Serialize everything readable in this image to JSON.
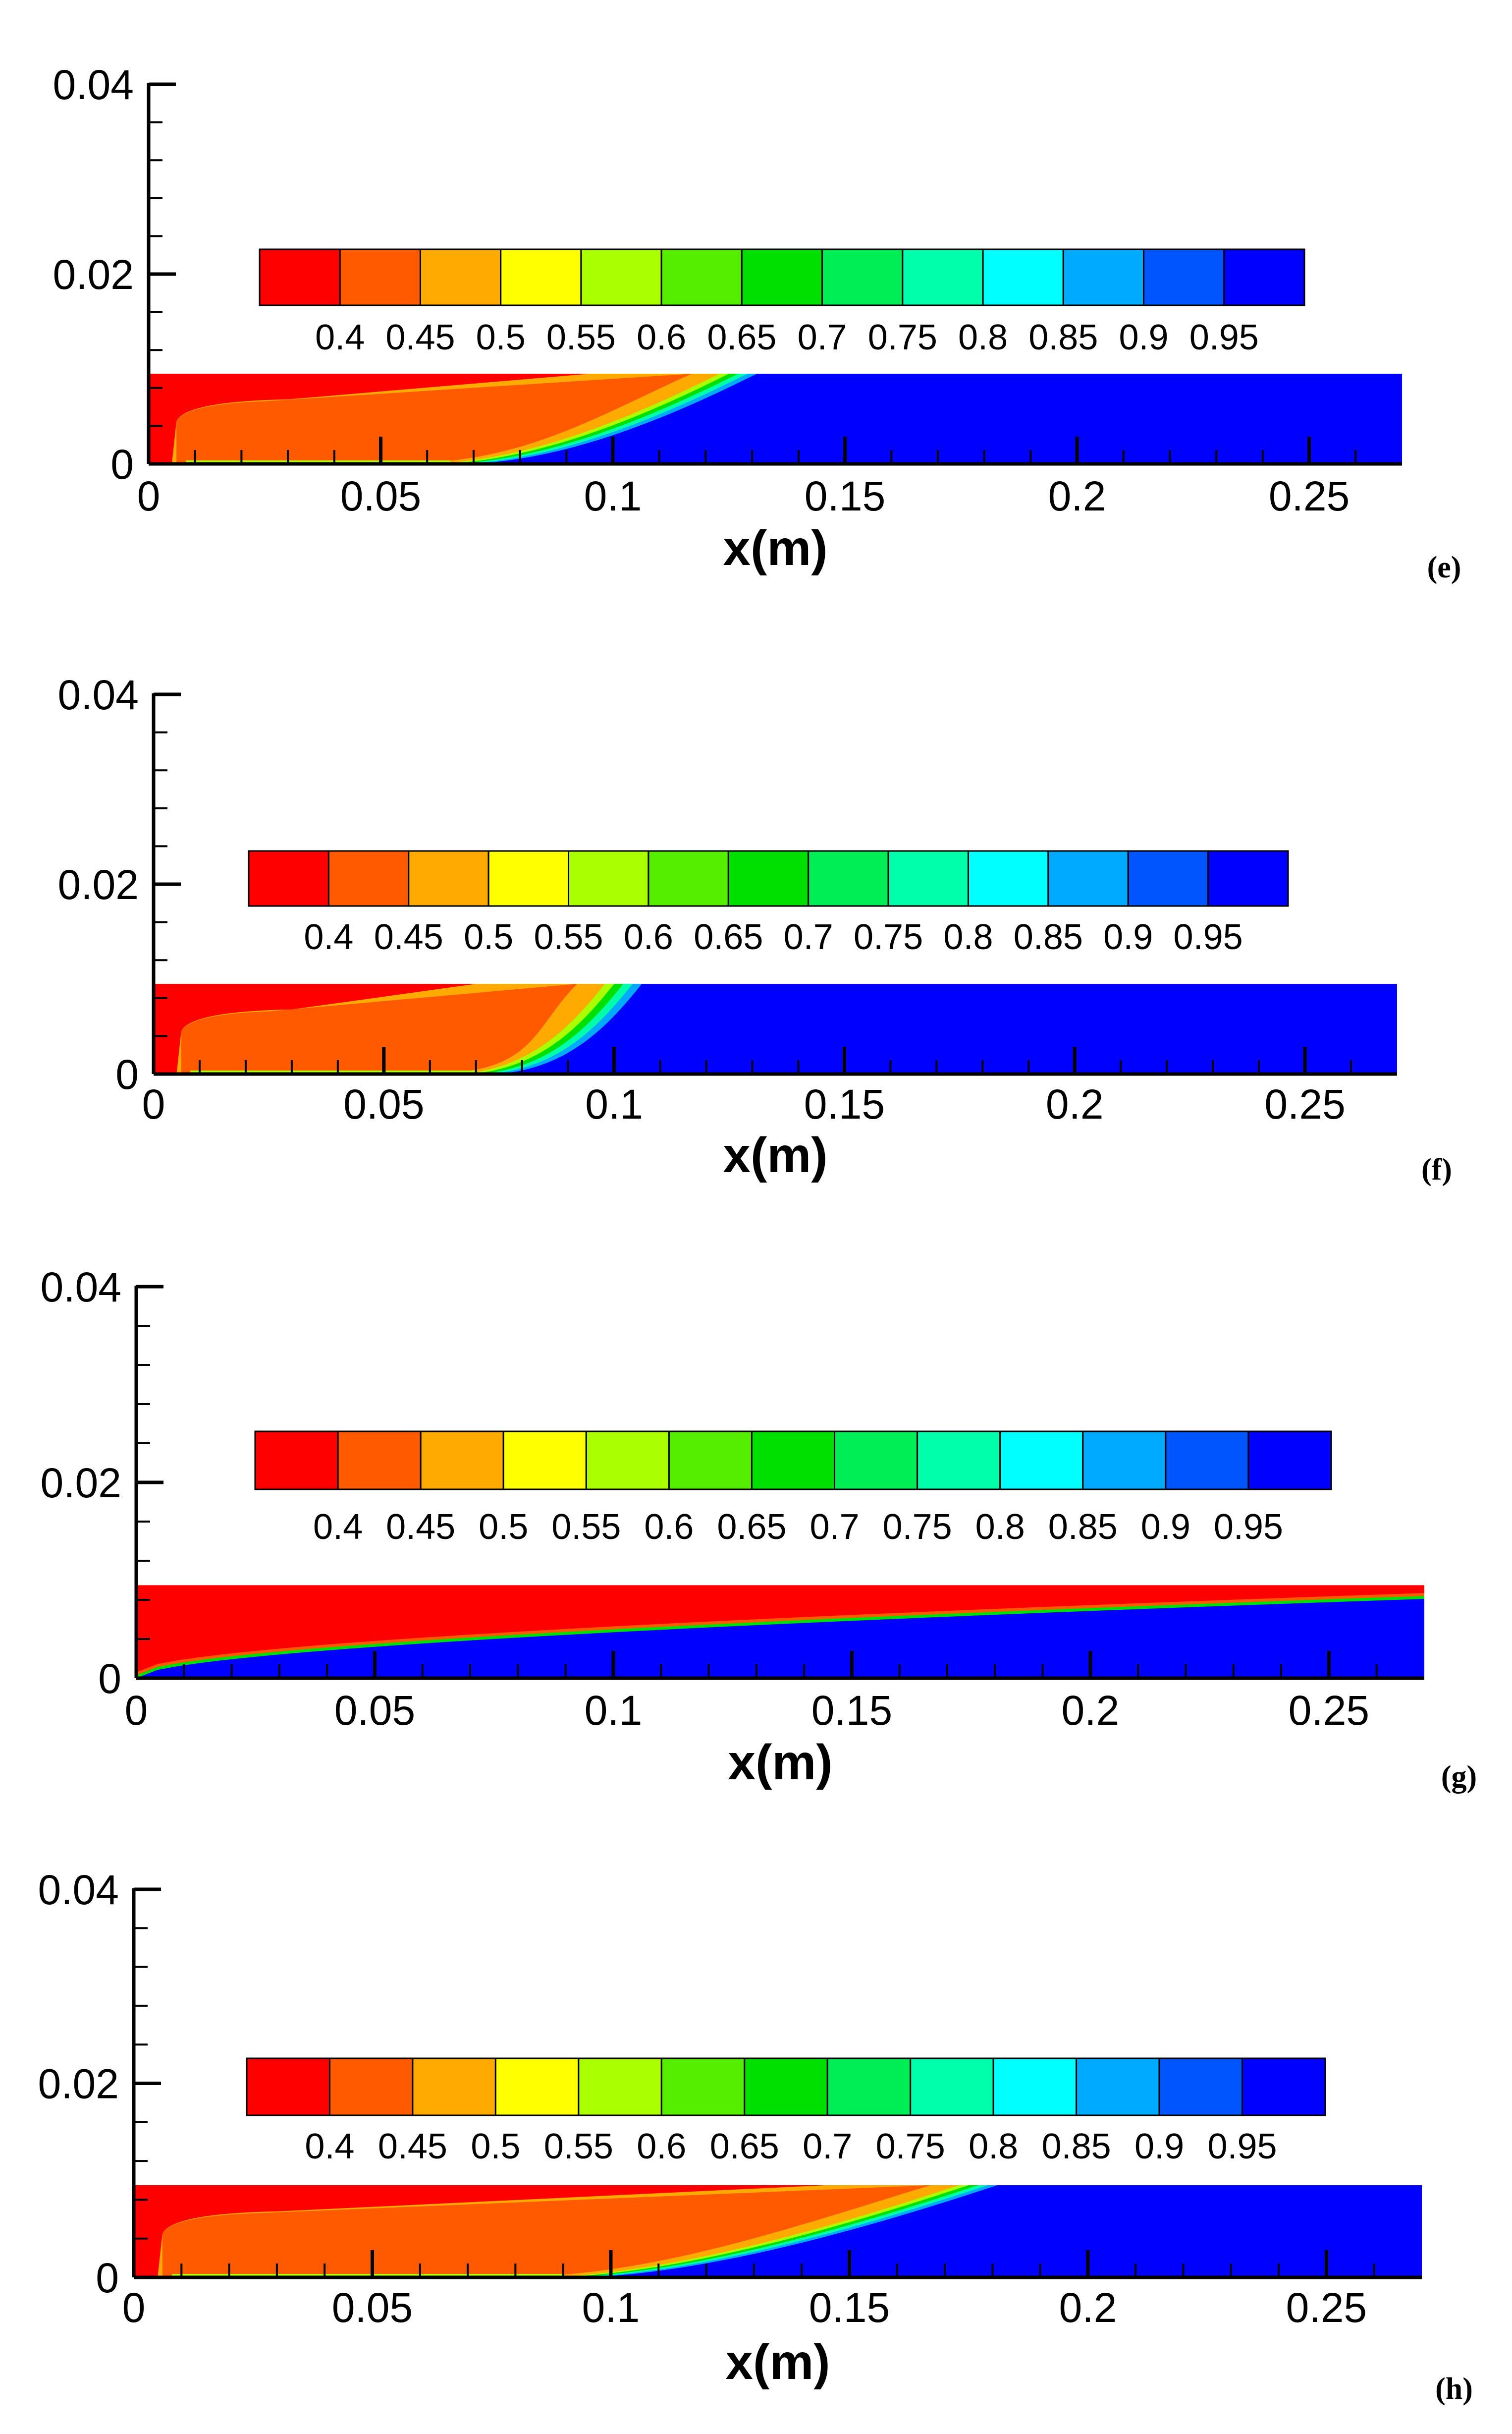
{
  "panel_labels": [
    "(e)",
    "(f)",
    "(g)",
    "(h)"
  ],
  "colorbar": {
    "colors": [
      "#ff0000",
      "#ff5a00",
      "#ffaa00",
      "#ffff00",
      "#aaff00",
      "#55ee00",
      "#00e000",
      "#00ee55",
      "#00ffaa",
      "#00ffff",
      "#00aaff",
      "#0055ff",
      "#0000ff"
    ],
    "labels": [
      "0.4",
      "0.45",
      "0.5",
      "0.55",
      "0.6",
      "0.65",
      "0.7",
      "0.75",
      "0.8",
      "0.85",
      "0.9",
      "0.95"
    ]
  },
  "chart_data": [
    {
      "type": "heatmap",
      "panel": "(e)",
      "xlabel": "x(m)",
      "x_ticks": [
        "0",
        "0.05",
        "0.1",
        "0.15",
        "0.2",
        "0.25"
      ],
      "y_ticks": [
        "0",
        "0.02",
        "0.04"
      ],
      "xlim": [
        0,
        0.27
      ],
      "ylim": [
        0,
        0.04
      ],
      "domain_height": 0.0095,
      "interface_x_wall": 0.075,
      "interface_x_top": 0.125
    },
    {
      "type": "heatmap",
      "panel": "(f)",
      "xlabel": "x(m)",
      "x_ticks": [
        "0",
        "0.05",
        "0.1",
        "0.15",
        "0.2",
        "0.25"
      ],
      "y_ticks": [
        "0",
        "0.02",
        "0.04"
      ],
      "xlim": [
        0,
        0.27
      ],
      "ylim": [
        0,
        0.04
      ],
      "domain_height": 0.0095,
      "interface_x_wall": 0.08,
      "interface_x_top": 0.1
    },
    {
      "type": "heatmap",
      "panel": "(g)",
      "xlabel": "x(m)",
      "x_ticks": [
        "0",
        "0.05",
        "0.1",
        "0.15",
        "0.2",
        "0.25"
      ],
      "y_ticks": [
        "0",
        "0.02",
        "0.04"
      ],
      "xlim": [
        0,
        0.27
      ],
      "ylim": [
        0,
        0.04
      ],
      "domain_height": 0.0095,
      "interface_mode": "layer"
    },
    {
      "type": "heatmap",
      "panel": "(h)",
      "xlabel": "x(m)",
      "x_ticks": [
        "0",
        "0.05",
        "0.1",
        "0.15",
        "0.2",
        "0.25"
      ],
      "y_ticks": [
        "0",
        "0.02",
        "0.04"
      ],
      "xlim": [
        0,
        0.27
      ],
      "ylim": [
        0,
        0.04
      ],
      "domain_height": 0.0095,
      "interface_x_wall": 0.1,
      "interface_x_top": 0.175
    }
  ]
}
